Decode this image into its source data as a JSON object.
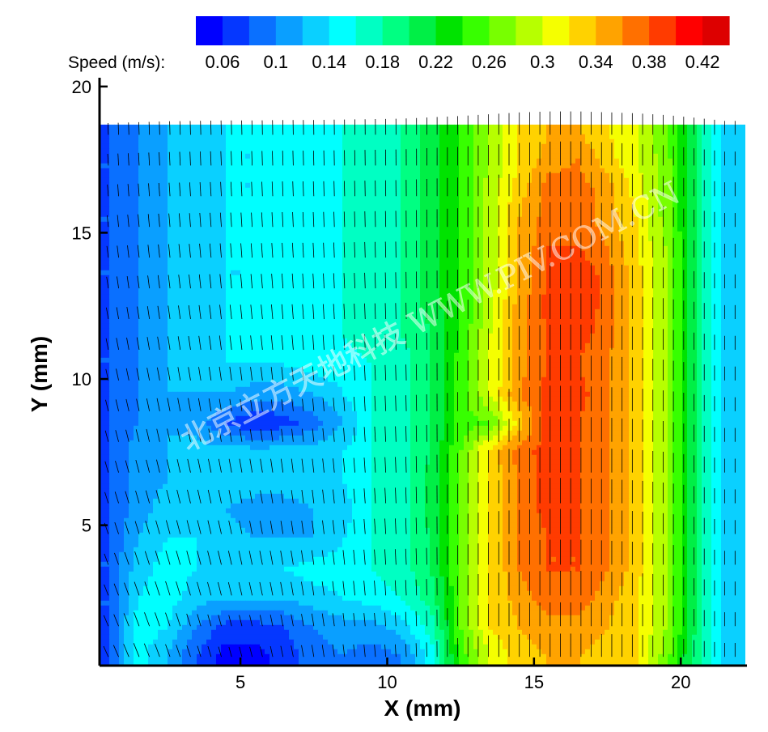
{
  "chart_data": {
    "type": "heatmap",
    "subtype": "contour-with-vector-field",
    "title": "",
    "xlabel": "X (mm)",
    "ylabel": "Y (mm)",
    "xlim": [
      0.2,
      22.2
    ],
    "ylim": [
      0.2,
      20.3
    ],
    "data_top": 18.7,
    "x_ticks": [
      5,
      10,
      15,
      20
    ],
    "y_ticks": [
      5,
      10,
      15,
      20
    ],
    "colorbar": {
      "title": "Speed (m/s):",
      "levels": [
        0.04,
        0.06,
        0.08,
        0.1,
        0.12,
        0.14,
        0.16,
        0.18,
        0.2,
        0.22,
        0.24,
        0.26,
        0.28,
        0.3,
        0.32,
        0.34,
        0.36,
        0.38,
        0.4,
        0.42,
        0.44
      ],
      "tick_labels": [
        "0.06",
        "0.1",
        "0.14",
        "0.18",
        "0.22",
        "0.26",
        "0.3",
        "0.34",
        "0.38",
        "0.42"
      ],
      "colors": [
        "#0000ff",
        "#0537ff",
        "#0a70ff",
        "#0a9fff",
        "#0ad0ff",
        "#00ffff",
        "#00ffc3",
        "#00ff82",
        "#00ef46",
        "#00e300",
        "#37ff00",
        "#78ff00",
        "#b7ff00",
        "#f5ff00",
        "#ffd200",
        "#ffa300",
        "#ff7000",
        "#ff3b00",
        "#ff0000",
        "#dd0000"
      ]
    },
    "speed_field": {
      "x": [
        0.5,
        1.5,
        2.5,
        3.5,
        4.5,
        5.5,
        6.5,
        7.5,
        8.5,
        9.5,
        10.5,
        11.5,
        12.5,
        13.5,
        14.5,
        15.5,
        16.5,
        17.5,
        18.5,
        19.5,
        20.5,
        21.5
      ],
      "y": [
        0.5,
        1.5,
        2.5,
        3.5,
        4.5,
        5.5,
        6.5,
        7.5,
        8.5,
        9.5,
        10.5,
        11.5,
        12.5,
        13.5,
        14.5,
        15.5,
        16.5,
        17.5,
        18.5
      ],
      "values": [
        [
          0.08,
          0.15,
          0.12,
          0.08,
          0.05,
          0.05,
          0.07,
          0.09,
          0.1,
          0.09,
          0.1,
          0.15,
          0.25,
          0.3,
          0.33,
          0.34,
          0.34,
          0.33,
          0.32,
          0.27,
          0.19,
          0.13
        ],
        [
          0.08,
          0.15,
          0.14,
          0.1,
          0.07,
          0.07,
          0.08,
          0.1,
          0.11,
          0.11,
          0.13,
          0.17,
          0.26,
          0.32,
          0.34,
          0.35,
          0.35,
          0.34,
          0.32,
          0.28,
          0.2,
          0.13
        ],
        [
          0.08,
          0.14,
          0.15,
          0.13,
          0.12,
          0.12,
          0.12,
          0.13,
          0.14,
          0.15,
          0.16,
          0.19,
          0.26,
          0.32,
          0.35,
          0.37,
          0.37,
          0.35,
          0.32,
          0.28,
          0.2,
          0.13
        ],
        [
          0.08,
          0.13,
          0.15,
          0.14,
          0.14,
          0.14,
          0.14,
          0.15,
          0.15,
          0.16,
          0.17,
          0.2,
          0.26,
          0.32,
          0.36,
          0.38,
          0.38,
          0.36,
          0.33,
          0.28,
          0.2,
          0.13
        ],
        [
          0.08,
          0.12,
          0.14,
          0.14,
          0.13,
          0.12,
          0.12,
          0.12,
          0.14,
          0.16,
          0.17,
          0.2,
          0.26,
          0.32,
          0.36,
          0.38,
          0.38,
          0.36,
          0.33,
          0.28,
          0.2,
          0.13
        ],
        [
          0.08,
          0.11,
          0.13,
          0.13,
          0.12,
          0.11,
          0.11,
          0.12,
          0.13,
          0.16,
          0.17,
          0.21,
          0.26,
          0.32,
          0.36,
          0.39,
          0.38,
          0.36,
          0.33,
          0.28,
          0.2,
          0.13
        ],
        [
          0.08,
          0.11,
          0.12,
          0.13,
          0.13,
          0.13,
          0.13,
          0.13,
          0.14,
          0.16,
          0.17,
          0.21,
          0.26,
          0.32,
          0.36,
          0.39,
          0.38,
          0.36,
          0.33,
          0.28,
          0.2,
          0.13
        ],
        [
          0.08,
          0.11,
          0.12,
          0.13,
          0.13,
          0.13,
          0.13,
          0.13,
          0.14,
          0.16,
          0.17,
          0.2,
          0.26,
          0.33,
          0.37,
          0.39,
          0.38,
          0.36,
          0.33,
          0.28,
          0.2,
          0.13
        ],
        [
          0.08,
          0.1,
          0.12,
          0.11,
          0.08,
          0.06,
          0.07,
          0.09,
          0.12,
          0.16,
          0.17,
          0.2,
          0.25,
          0.26,
          0.33,
          0.39,
          0.38,
          0.36,
          0.33,
          0.28,
          0.2,
          0.13
        ],
        [
          0.08,
          0.1,
          0.12,
          0.12,
          0.12,
          0.11,
          0.11,
          0.12,
          0.14,
          0.16,
          0.17,
          0.2,
          0.25,
          0.3,
          0.36,
          0.39,
          0.39,
          0.36,
          0.33,
          0.28,
          0.2,
          0.13
        ],
        [
          0.08,
          0.1,
          0.12,
          0.13,
          0.14,
          0.14,
          0.14,
          0.15,
          0.15,
          0.16,
          0.17,
          0.2,
          0.25,
          0.3,
          0.35,
          0.38,
          0.38,
          0.36,
          0.33,
          0.28,
          0.2,
          0.13
        ],
        [
          0.08,
          0.1,
          0.12,
          0.13,
          0.14,
          0.14,
          0.15,
          0.15,
          0.16,
          0.17,
          0.18,
          0.2,
          0.24,
          0.3,
          0.35,
          0.38,
          0.39,
          0.37,
          0.33,
          0.28,
          0.2,
          0.13
        ],
        [
          0.08,
          0.1,
          0.12,
          0.13,
          0.14,
          0.14,
          0.15,
          0.15,
          0.16,
          0.17,
          0.18,
          0.21,
          0.24,
          0.29,
          0.35,
          0.39,
          0.4,
          0.37,
          0.33,
          0.28,
          0.2,
          0.13
        ],
        [
          0.08,
          0.1,
          0.12,
          0.13,
          0.14,
          0.14,
          0.15,
          0.15,
          0.16,
          0.17,
          0.18,
          0.21,
          0.24,
          0.29,
          0.34,
          0.38,
          0.4,
          0.37,
          0.33,
          0.28,
          0.2,
          0.13
        ],
        [
          0.08,
          0.1,
          0.12,
          0.13,
          0.14,
          0.14,
          0.15,
          0.15,
          0.16,
          0.17,
          0.18,
          0.21,
          0.24,
          0.29,
          0.34,
          0.38,
          0.38,
          0.36,
          0.32,
          0.28,
          0.2,
          0.13
        ],
        [
          0.08,
          0.1,
          0.12,
          0.13,
          0.14,
          0.14,
          0.15,
          0.15,
          0.16,
          0.17,
          0.18,
          0.21,
          0.24,
          0.29,
          0.34,
          0.37,
          0.37,
          0.35,
          0.32,
          0.27,
          0.2,
          0.13
        ],
        [
          0.08,
          0.1,
          0.12,
          0.13,
          0.14,
          0.14,
          0.15,
          0.15,
          0.16,
          0.17,
          0.18,
          0.21,
          0.24,
          0.29,
          0.33,
          0.37,
          0.37,
          0.35,
          0.31,
          0.27,
          0.2,
          0.13
        ],
        [
          0.08,
          0.1,
          0.12,
          0.13,
          0.14,
          0.14,
          0.15,
          0.15,
          0.16,
          0.17,
          0.18,
          0.21,
          0.24,
          0.28,
          0.32,
          0.35,
          0.36,
          0.33,
          0.3,
          0.27,
          0.2,
          0.13
        ],
        [
          0.08,
          0.1,
          0.12,
          0.13,
          0.14,
          0.14,
          0.15,
          0.15,
          0.16,
          0.17,
          0.18,
          0.21,
          0.24,
          0.28,
          0.32,
          0.34,
          0.34,
          0.32,
          0.3,
          0.26,
          0.2,
          0.13
        ]
      ]
    },
    "vector_field": {
      "x_spacing_mm": 0.35,
      "y_spacing_mm": 0.35,
      "description_text": []
    },
    "watermark": "北京立方天地科技 WWW.PIV.COM.CN"
  }
}
